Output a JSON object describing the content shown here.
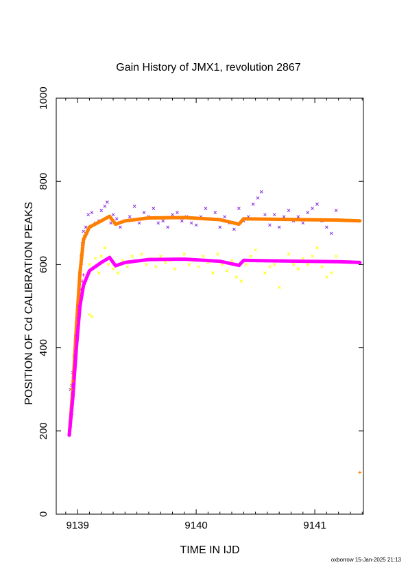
{
  "chart_data": {
    "type": "scatter",
    "title": "Gain History of JMX1, revolution 2867",
    "xlabel": "TIME IN IJD",
    "ylabel": "POSITION OF Cd CALIBRATION PEAKS",
    "xlim": [
      9138.82,
      9141.41
    ],
    "ylim": [
      0,
      1000
    ],
    "xticks": [
      "9139",
      "9140",
      "9141"
    ],
    "yticks": [
      "0",
      "200",
      "400",
      "600",
      "800",
      "1000"
    ],
    "grid": false,
    "legend": "none",
    "series": [
      {
        "kind": "points",
        "marker": "x",
        "color": "#8a2be2",
        "points": [
          [
            9138.94,
            300
          ],
          [
            9138.95,
            310
          ],
          [
            9138.96,
            340
          ],
          [
            9138.97,
            380
          ],
          [
            9138.98,
            420
          ],
          [
            9138.99,
            450
          ],
          [
            9139.0,
            500
          ],
          [
            9139.01,
            540
          ],
          [
            9139.02,
            580
          ],
          [
            9139.03,
            620
          ],
          [
            9139.04,
            650
          ],
          [
            9139.05,
            680
          ],
          [
            9139.07,
            690
          ],
          [
            9139.09,
            720
          ],
          [
            9139.12,
            725
          ],
          [
            9139.15,
            700
          ],
          [
            9139.18,
            705
          ],
          [
            9139.2,
            730
          ],
          [
            9139.23,
            740
          ],
          [
            9139.25,
            750
          ],
          [
            9139.28,
            700
          ],
          [
            9139.3,
            720
          ],
          [
            9139.33,
            710
          ],
          [
            9139.36,
            690
          ],
          [
            9139.4,
            705
          ],
          [
            9139.44,
            715
          ],
          [
            9139.48,
            740
          ],
          [
            9139.52,
            700
          ],
          [
            9139.56,
            725
          ],
          [
            9139.6,
            715
          ],
          [
            9139.64,
            735
          ],
          [
            9139.68,
            700
          ],
          [
            9139.72,
            705
          ],
          [
            9139.76,
            690
          ],
          [
            9139.8,
            720
          ],
          [
            9139.84,
            725
          ],
          [
            9139.88,
            705
          ],
          [
            9139.92,
            715
          ],
          [
            9139.96,
            700
          ],
          [
            9140.0,
            695
          ],
          [
            9140.04,
            715
          ],
          [
            9140.08,
            735
          ],
          [
            9140.12,
            710
          ],
          [
            9140.16,
            725
          ],
          [
            9140.2,
            690
          ],
          [
            9140.24,
            715
          ],
          [
            9140.28,
            700
          ],
          [
            9140.32,
            685
          ],
          [
            9140.36,
            735
          ],
          [
            9140.4,
            705
          ],
          [
            9140.44,
            715
          ],
          [
            9140.48,
            745
          ],
          [
            9140.52,
            760
          ],
          [
            9140.55,
            775
          ],
          [
            9140.58,
            720
          ],
          [
            9140.62,
            695
          ],
          [
            9140.66,
            720
          ],
          [
            9140.7,
            690
          ],
          [
            9140.74,
            715
          ],
          [
            9140.78,
            730
          ],
          [
            9140.82,
            705
          ],
          [
            9140.86,
            715
          ],
          [
            9140.9,
            700
          ],
          [
            9140.94,
            725
          ],
          [
            9140.98,
            735
          ],
          [
            9141.02,
            745
          ],
          [
            9141.06,
            705
          ],
          [
            9141.1,
            690
          ],
          [
            9141.14,
            675
          ],
          [
            9141.18,
            730
          ]
        ]
      },
      {
        "kind": "points",
        "marker": "x",
        "color": "#ffff00",
        "points": [
          [
            9138.95,
            290
          ],
          [
            9138.97,
            330
          ],
          [
            9138.99,
            400
          ],
          [
            9139.01,
            450
          ],
          [
            9139.03,
            520
          ],
          [
            9139.06,
            560
          ],
          [
            9139.08,
            575
          ],
          [
            9139.1,
            600
          ],
          [
            9139.1,
            480
          ],
          [
            9139.12,
            475
          ],
          [
            9139.15,
            615
          ],
          [
            9139.18,
            580
          ],
          [
            9139.2,
            620
          ],
          [
            9139.23,
            640
          ],
          [
            9139.26,
            600
          ],
          [
            9139.3,
            590
          ],
          [
            9139.34,
            580
          ],
          [
            9139.38,
            610
          ],
          [
            9139.42,
            595
          ],
          [
            9139.46,
            620
          ],
          [
            9139.5,
            610
          ],
          [
            9139.54,
            625
          ],
          [
            9139.58,
            600
          ],
          [
            9139.62,
            615
          ],
          [
            9139.66,
            595
          ],
          [
            9139.7,
            620
          ],
          [
            9139.74,
            605
          ],
          [
            9139.78,
            610
          ],
          [
            9139.82,
            590
          ],
          [
            9139.86,
            615
          ],
          [
            9139.9,
            625
          ],
          [
            9139.94,
            600
          ],
          [
            9139.98,
            610
          ],
          [
            9140.02,
            595
          ],
          [
            9140.06,
            620
          ],
          [
            9140.1,
            605
          ],
          [
            9140.14,
            580
          ],
          [
            9140.18,
            625
          ],
          [
            9140.22,
            600
          ],
          [
            9140.26,
            585
          ],
          [
            9140.3,
            610
          ],
          [
            9140.34,
            570
          ],
          [
            9140.38,
            560
          ],
          [
            9140.42,
            600
          ],
          [
            9140.46,
            620
          ],
          [
            9140.5,
            635
          ],
          [
            9140.54,
            610
          ],
          [
            9140.58,
            580
          ],
          [
            9140.62,
            595
          ],
          [
            9140.66,
            600
          ],
          [
            9140.7,
            545
          ],
          [
            9140.74,
            610
          ],
          [
            9140.78,
            625
          ],
          [
            9140.82,
            600
          ],
          [
            9140.86,
            590
          ],
          [
            9140.9,
            615
          ],
          [
            9140.94,
            600
          ],
          [
            9140.98,
            620
          ],
          [
            9141.02,
            640
          ],
          [
            9141.06,
            595
          ],
          [
            9141.1,
            570
          ],
          [
            9141.14,
            580
          ],
          [
            9141.18,
            620
          ]
        ]
      },
      {
        "kind": "line",
        "color": "#ff7f00",
        "points": [
          [
            9138.93,
            190
          ],
          [
            9138.96,
            300
          ],
          [
            9138.99,
            450
          ],
          [
            9139.02,
            580
          ],
          [
            9139.05,
            660
          ],
          [
            9139.1,
            690
          ],
          [
            9139.2,
            705
          ],
          [
            9139.27,
            716
          ],
          [
            9139.32,
            697
          ],
          [
            9139.4,
            705
          ],
          [
            9139.6,
            712
          ],
          [
            9139.9,
            713
          ],
          [
            9140.2,
            708
          ],
          [
            9140.36,
            697
          ],
          [
            9140.4,
            710
          ],
          [
            9140.6,
            709
          ],
          [
            9140.9,
            708
          ],
          [
            9141.2,
            707
          ],
          [
            9141.38,
            705
          ]
        ]
      },
      {
        "kind": "line",
        "color": "#ff00ff",
        "points": [
          [
            9138.93,
            190
          ],
          [
            9138.96,
            280
          ],
          [
            9138.99,
            400
          ],
          [
            9139.02,
            500
          ],
          [
            9139.05,
            550
          ],
          [
            9139.1,
            585
          ],
          [
            9139.2,
            605
          ],
          [
            9139.27,
            617
          ],
          [
            9139.32,
            597
          ],
          [
            9139.4,
            605
          ],
          [
            9139.6,
            612
          ],
          [
            9139.9,
            613
          ],
          [
            9140.2,
            608
          ],
          [
            9140.36,
            598
          ],
          [
            9140.4,
            610
          ],
          [
            9140.6,
            609
          ],
          [
            9140.9,
            608
          ],
          [
            9141.2,
            607
          ],
          [
            9141.38,
            605
          ]
        ]
      },
      {
        "kind": "points",
        "marker": "+",
        "color": "#ff00ff",
        "points": [
          [
            9138.93,
            190
          ],
          [
            9138.94,
            210
          ],
          [
            9138.95,
            240
          ],
          [
            9138.96,
            290
          ],
          [
            9138.97,
            340
          ],
          [
            9138.98,
            390
          ],
          [
            9138.99,
            430
          ],
          [
            9139.0,
            470
          ],
          [
            9139.01,
            500
          ],
          [
            9139.02,
            520
          ],
          [
            9139.03,
            540
          ],
          [
            9139.04,
            560
          ],
          [
            9139.05,
            575
          ]
        ]
      },
      {
        "kind": "points",
        "marker": "+",
        "color": "#ff7f00",
        "points": [
          [
            9138.95,
            300
          ],
          [
            9138.96,
            320
          ],
          [
            9138.99,
            460
          ],
          [
            9139.01,
            520
          ],
          [
            9139.03,
            600
          ],
          [
            9139.04,
            640
          ],
          [
            9139.06,
            670
          ],
          [
            9141.38,
            100
          ]
        ]
      }
    ]
  },
  "footer": "oxborrow 15-Jan-2025 21:13"
}
